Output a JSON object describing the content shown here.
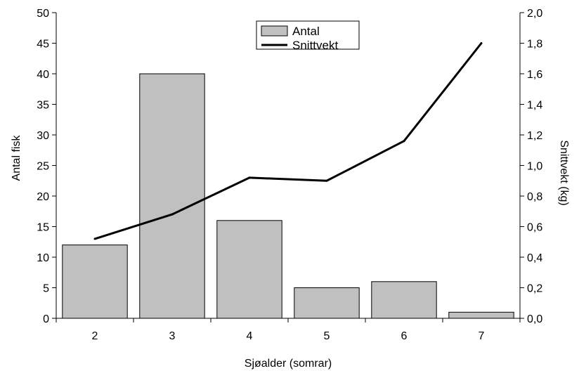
{
  "chart_data": {
    "type": "bar",
    "categories": [
      "2",
      "3",
      "4",
      "5",
      "6",
      "7"
    ],
    "series": [
      {
        "name": "Antal",
        "type": "bar",
        "axis": "left",
        "values": [
          12,
          40,
          16,
          5,
          6,
          1
        ]
      },
      {
        "name": "Snittvekt",
        "type": "line",
        "axis": "right",
        "values": [
          0.52,
          0.68,
          0.92,
          0.9,
          1.16,
          1.8
        ]
      }
    ],
    "xlabel": "Sjøalder (somrar)",
    "ylabel": "Antal fisk",
    "y2label": "Snittvekt (kg)",
    "ylim": [
      0,
      50
    ],
    "y2lim": [
      0,
      2.0
    ],
    "yticks": [
      "0",
      "5",
      "10",
      "15",
      "20",
      "25",
      "30",
      "35",
      "40",
      "45",
      "50"
    ],
    "y2ticks": [
      "0,0",
      "0,2",
      "0,4",
      "0,6",
      "0,8",
      "1,0",
      "1,2",
      "1,4",
      "1,6",
      "1,8",
      "2,0"
    ],
    "legend_position": "top-center",
    "grid": false,
    "colors": {
      "bar_fill": "#c0c0c0",
      "bar_stroke": "#000000",
      "line": "#000000"
    }
  }
}
